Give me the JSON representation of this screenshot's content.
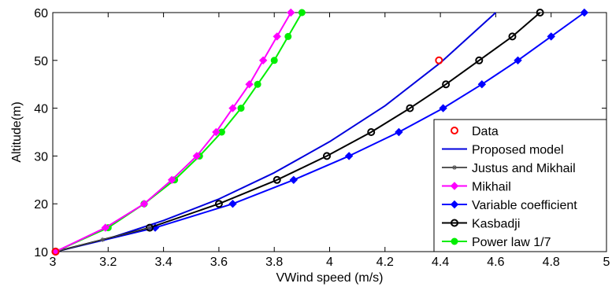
{
  "chart_data": {
    "type": "line",
    "title": "",
    "xlabel": "VWind speed (m/s)",
    "ylabel": "Altitude(m)",
    "xlim": [
      3,
      5
    ],
    "ylim": [
      10,
      60
    ],
    "xticks": [
      3,
      3.2,
      3.4,
      3.6,
      3.8,
      4,
      4.2,
      4.4,
      4.6,
      4.8,
      5
    ],
    "xtick_labels": [
      "3",
      "3.2",
      "3.4",
      "3.6",
      "3.8",
      "4",
      "4.2",
      "4.4",
      "4.6",
      "4.8",
      "5"
    ],
    "yticks": [
      10,
      20,
      30,
      40,
      50,
      60
    ],
    "ytick_labels": [
      "10",
      "20",
      "30",
      "40",
      "50",
      "60"
    ],
    "grid": false,
    "legend_position": "bottom-right",
    "series": [
      {
        "name": "Data",
        "color": "#ff0000",
        "marker": "circle-open",
        "line": false,
        "x": [
          3.01,
          4.395
        ],
        "y": [
          10,
          50
        ]
      },
      {
        "name": "Proposed model",
        "color": "#0000dd",
        "marker": "none",
        "line": true,
        "x": [
          3.01,
          3.2,
          3.4,
          3.6,
          3.8,
          4.0,
          4.2,
          4.4,
          4.6
        ],
        "y": [
          10,
          12.7,
          16.5,
          21.0,
          26.5,
          33.0,
          40.5,
          49.5,
          60
        ]
      },
      {
        "name": "Justus and Mikhail",
        "color": "#555555",
        "marker": "star",
        "line": true,
        "x": [
          3.01,
          3.18,
          3.35
        ],
        "y": [
          10,
          12.5,
          15
        ]
      },
      {
        "name": "Mikhail",
        "color": "#ff00ff",
        "marker": "diamond",
        "line": true,
        "x": [
          3.01,
          3.19,
          3.33,
          3.43,
          3.52,
          3.59,
          3.65,
          3.71,
          3.76,
          3.81,
          3.86
        ],
        "y": [
          10,
          15,
          20,
          25,
          30,
          35,
          40,
          45,
          50,
          55,
          60
        ]
      },
      {
        "name": "Variable coefficient",
        "color": "#0000ff",
        "marker": "diamond",
        "line": true,
        "x": [
          3.01,
          3.37,
          3.65,
          3.87,
          4.07,
          4.25,
          4.41,
          4.55,
          4.68,
          4.8,
          4.92
        ],
        "y": [
          10,
          15,
          20,
          25,
          30,
          35,
          40,
          45,
          50,
          55,
          60
        ]
      },
      {
        "name": "Kasbadji",
        "color": "#000000",
        "marker": "circle-open",
        "line": true,
        "x": [
          3.01,
          3.35,
          3.6,
          3.81,
          3.99,
          4.15,
          4.29,
          4.42,
          4.54,
          4.66,
          4.76
        ],
        "y": [
          10,
          15,
          20,
          25,
          30,
          35,
          40,
          45,
          50,
          55,
          60
        ]
      },
      {
        "name": "Power law 1/7",
        "color": "#00ee00",
        "marker": "circle-filled",
        "line": true,
        "x": [
          3.01,
          3.2,
          3.33,
          3.44,
          3.53,
          3.61,
          3.68,
          3.74,
          3.8,
          3.85,
          3.9
        ],
        "y": [
          10,
          15,
          20,
          25,
          30,
          35,
          40,
          45,
          50,
          55,
          60
        ]
      }
    ]
  }
}
